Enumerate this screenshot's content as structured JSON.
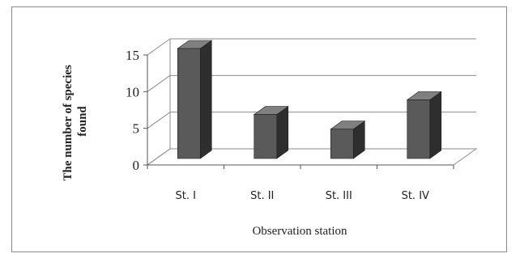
{
  "chart_data": {
    "type": "bar",
    "style": "3d-column",
    "categories": [
      "St. I",
      "St. II",
      "St. III",
      "St. IV"
    ],
    "values": [
      15,
      6,
      4,
      8
    ],
    "title": "",
    "xlabel": "Observation station",
    "ylabel_lines": [
      "The number of species",
      "found"
    ],
    "ylim": [
      0,
      15
    ],
    "yticks": [
      0,
      5,
      10,
      15
    ],
    "grid": true,
    "legend": "none",
    "colors": {
      "bar_front": "#5a5a5a",
      "bar_side": "#2e2e2e",
      "bar_top": "#808080",
      "grid": "#8c8c8c",
      "axis": "#555555"
    }
  }
}
